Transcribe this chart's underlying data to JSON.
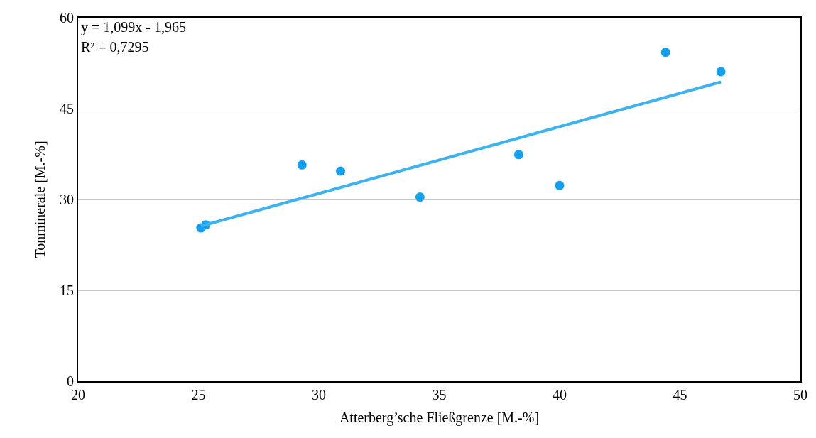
{
  "chart_data": {
    "type": "scatter",
    "xlabel": "Atterberg’sche Fließgrenze [M.-%]",
    "ylabel": "Tonminerale [M.-%]",
    "xlim": [
      20,
      50
    ],
    "xticks": [
      20,
      25,
      30,
      35,
      40,
      45,
      50
    ],
    "ylim": [
      0,
      60
    ],
    "yticks": [
      0,
      15,
      30,
      45,
      60
    ],
    "grid": "y",
    "legend": false,
    "marker": "circle",
    "annotations": [
      "y = 1,099x - 1,965",
      "R² = 0,7295"
    ],
    "series": [
      {
        "color": "#12a0f0",
        "x": [
          25.1,
          25.3,
          29.3,
          30.9,
          34.2,
          38.3,
          40.0,
          44.4,
          46.7
        ],
        "values": [
          25.3,
          25.8,
          35.7,
          34.7,
          30.4,
          37.4,
          32.3,
          54.3,
          51.1
        ]
      },
      {
        "type": "line",
        "color": "#3cb2ee",
        "x": [
          25.1,
          46.7
        ],
        "values": [
          25.6,
          49.4
        ],
        "line_style": "solid",
        "marker": "none"
      }
    ]
  }
}
